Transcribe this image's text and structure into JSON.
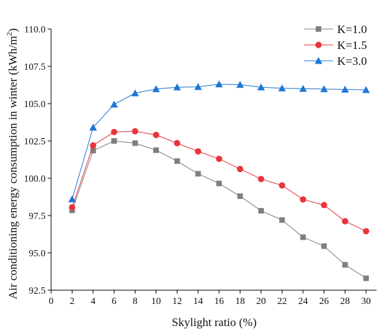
{
  "chart_data": {
    "type": "line",
    "xlabel": "Skylight ratio (%)",
    "ylabel_main": "Air conditioning energy consumption in winter (kWh/m",
    "ylabel_sup": "2",
    "ylabel_close": ")",
    "xlim": [
      0,
      31
    ],
    "ylim": [
      92.5,
      110.0
    ],
    "x_ticks": [
      0,
      2,
      4,
      6,
      8,
      10,
      12,
      14,
      16,
      18,
      20,
      22,
      24,
      26,
      28,
      30
    ],
    "y_ticks": [
      92.5,
      95.0,
      97.5,
      100.0,
      102.5,
      105.0,
      107.5,
      110.0
    ],
    "legend_position": "top-right",
    "x": [
      2,
      4,
      6,
      8,
      10,
      12,
      14,
      16,
      18,
      20,
      22,
      24,
      26,
      28,
      30
    ],
    "series": [
      {
        "name": "K=1.0",
        "color": "#7f7f7f",
        "marker": "square",
        "values": [
          97.85,
          101.85,
          102.5,
          102.35,
          101.88,
          101.15,
          100.3,
          99.65,
          98.8,
          97.82,
          97.2,
          96.05,
          95.45,
          94.2,
          93.3
        ]
      },
      {
        "name": "K=1.5",
        "color": "#e8353c",
        "marker": "circle",
        "values": [
          98.05,
          102.2,
          103.1,
          103.15,
          102.9,
          102.35,
          101.8,
          101.3,
          100.62,
          99.95,
          99.52,
          98.58,
          98.2,
          97.12,
          96.45
        ]
      },
      {
        "name": "K=3.0",
        "color": "#1f77d4",
        "marker": "triangle",
        "values": [
          98.6,
          103.4,
          104.95,
          105.7,
          105.98,
          106.1,
          106.12,
          106.3,
          106.27,
          106.1,
          106.03,
          106.0,
          105.98,
          105.95,
          105.92
        ]
      }
    ]
  }
}
